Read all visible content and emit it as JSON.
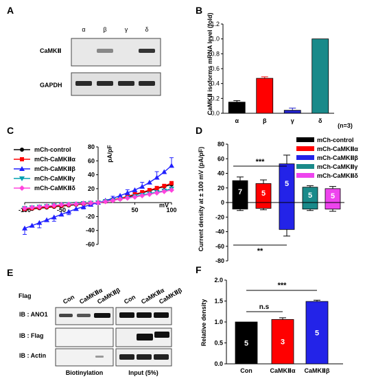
{
  "panels": {
    "A": {
      "label": "A",
      "columns": [
        "α",
        "β",
        "γ",
        "δ"
      ],
      "rows": [
        "CaMKⅡ",
        "GAPDH"
      ],
      "camk_band_intensity": [
        0.02,
        0.45,
        0.05,
        0.85
      ],
      "gapdh_band_intensity": [
        0.9,
        0.9,
        0.9,
        0.9
      ]
    },
    "B": {
      "label": "B",
      "chart_data": {
        "type": "bar",
        "categories": [
          "α",
          "β",
          "γ",
          "δ"
        ],
        "values": [
          0.15,
          0.47,
          0.04,
          1.0
        ],
        "errors": [
          0.02,
          0.02,
          0.03,
          0.0
        ],
        "colors": [
          "#000000",
          "#ff0000",
          "#2323c8",
          "#1a8a8a"
        ],
        "ylabel": "CaMKⅡ isoforms mRNA level (fold)",
        "ylim": [
          0,
          1.2
        ],
        "yticks": [
          "0.0",
          "0.2",
          "0.4",
          "0.6",
          "0.8",
          "1.0",
          "1.2"
        ],
        "note": "(n=3)"
      }
    },
    "C": {
      "label": "C",
      "chart_data": {
        "type": "line",
        "x": [
          -100,
          -90,
          -80,
          -70,
          -60,
          -50,
          -40,
          -30,
          -20,
          -10,
          0,
          10,
          20,
          30,
          40,
          50,
          60,
          70,
          80,
          90,
          100
        ],
        "series": [
          {
            "name": "mCh-control",
            "color": "#000000",
            "marker": "circle",
            "values": [
              -10,
              -9,
              -8,
              -7,
              -6,
              -5,
              -4,
              -3,
              -2,
              -1,
              0,
              2,
              4,
              6,
              8,
              11,
              14,
              17,
              20,
              23,
              26
            ]
          },
          {
            "name": "mCh-CaMKⅡα",
            "color": "#ff0000",
            "marker": "square",
            "values": [
              -9,
              -8,
              -7,
              -6,
              -5,
              -4,
              -3,
              -2,
              -1,
              -0.5,
              0,
              2,
              4,
              6,
              9,
              12,
              15,
              18,
              21,
              24,
              28
            ]
          },
          {
            "name": "mCh-CaMKⅡβ",
            "color": "#2020ff",
            "marker": "triangle",
            "values": [
              -37,
              -33,
              -29,
              -25,
              -21,
              -17,
              -13,
              -9,
              -6,
              -3,
              0,
              3,
              6,
              10,
              14,
              18,
              23,
              29,
              36,
              44,
              53
            ]
          },
          {
            "name": "mCh-CaMKⅡγ",
            "color": "#00a0b0",
            "marker": "triangle-down",
            "values": [
              -8,
              -7,
              -6,
              -5,
              -4,
              -3,
              -2.5,
              -2,
              -1,
              -0.5,
              0,
              2,
              3.5,
              5,
              7,
              9,
              11,
              13,
              15,
              17,
              20
            ]
          },
          {
            "name": "mCh-CaMKⅡδ",
            "color": "#ff44dd",
            "marker": "diamond",
            "values": [
              -8,
              -7,
              -6,
              -5,
              -4,
              -3,
              -2.5,
              -2,
              -1,
              -0.5,
              0,
              1.5,
              3,
              5,
              6.5,
              8,
              10,
              12,
              14,
              16,
              18
            ]
          }
        ],
        "xlim": [
          -100,
          100
        ],
        "ylim": [
          -60,
          80
        ],
        "xticks": [
          "-100",
          "-50",
          "50",
          "100"
        ],
        "yticks": [
          "80",
          "60",
          "40",
          "20",
          "-20",
          "-40",
          "-60"
        ],
        "xlabel": "mV",
        "ylabel": "pA/pF"
      }
    },
    "D": {
      "label": "D",
      "chart_data": {
        "type": "bar",
        "categories": [
          "mCh-control",
          "mCh-CaMKⅡα",
          "mCh-CaMKⅡβ",
          "mCh-CaMKⅡγ",
          "mCh-CaMKⅡδ"
        ],
        "pos_values": [
          30,
          26,
          53,
          21,
          19
        ],
        "neg_values": [
          -9,
          -8,
          -37,
          -9,
          -9
        ],
        "pos_errors": [
          5,
          5,
          12,
          2,
          3
        ],
        "neg_errors": [
          2,
          2,
          9,
          2,
          3
        ],
        "n_labels": [
          "7",
          "5",
          "5",
          "5",
          "5"
        ],
        "colors": [
          "#000000",
          "#ff0000",
          "#2323e8",
          "#1a8a8a",
          "#ee44ee"
        ],
        "ylabel": "Current density at ± 100 mV (pA/pF)",
        "ylim": [
          -80,
          80
        ],
        "yticks": [
          "80",
          "60",
          "40",
          "20",
          "0",
          "-20",
          "-40",
          "-60",
          "-80"
        ],
        "sig_top": "***",
        "sig_bottom": "**"
      }
    },
    "E": {
      "label": "E",
      "flag_label": "Flag",
      "lanes": [
        "Con",
        "CaMKⅡα",
        "CaMKⅡβ",
        "Con",
        "CaMKⅡα",
        "CaMKⅡβ"
      ],
      "rows": [
        "IB : ANO1",
        "IB : Flag",
        "IB : Actin"
      ],
      "group_labels": [
        "Biotinylation",
        "Input (5%)"
      ]
    },
    "F": {
      "label": "F",
      "chart_data": {
        "type": "bar",
        "categories": [
          "Con",
          "CaMKⅡα",
          "CaMKⅡβ"
        ],
        "values": [
          1.0,
          1.06,
          1.49
        ],
        "errors": [
          0.0,
          0.04,
          0.03
        ],
        "n_labels": [
          "5",
          "3",
          "5"
        ],
        "colors": [
          "#000000",
          "#ff0000",
          "#2323e8"
        ],
        "ylabel": "Relative density",
        "ylim": [
          0,
          2.0
        ],
        "yticks": [
          "0.0",
          "0.5",
          "1.0",
          "1.5",
          "2.0"
        ],
        "sig_labels": [
          "n.s",
          "***"
        ]
      }
    }
  }
}
